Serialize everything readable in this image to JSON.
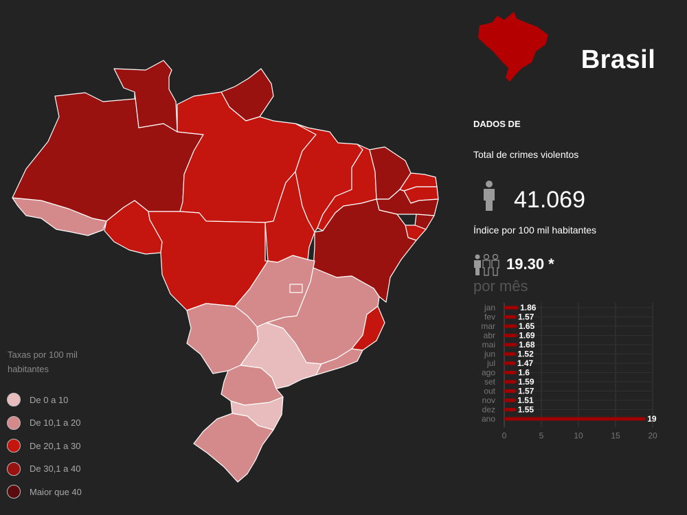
{
  "header": {
    "country_name": "Brasil",
    "section_heading": "DADOS DE",
    "total_label": "Total de crimes violentos",
    "total_value": "41.069",
    "index_label": "Índice por 100 mil habitantes",
    "index_value": "19.30 *",
    "month_title": "por mês"
  },
  "legend": {
    "title": "Taxas por 100 mil habitantes",
    "items": [
      {
        "label": "De 0 a 10",
        "color": "#e8bcbc"
      },
      {
        "label": "De 10,1 a 20",
        "color": "#d48a8a"
      },
      {
        "label": "De 20,1 a 30",
        "color": "#c4160f"
      },
      {
        "label": "De 30,1 a 40",
        "color": "#9a1210"
      },
      {
        "label": "Maior que 40",
        "color": "#5a0b0d"
      }
    ]
  },
  "map": {
    "states": [
      {
        "name": "AC",
        "color": "#d48a8a"
      },
      {
        "name": "AM",
        "color": "#9a1210"
      },
      {
        "name": "RR",
        "color": "#9a1210"
      },
      {
        "name": "AP",
        "color": "#9a1210"
      },
      {
        "name": "PA",
        "color": "#c4160f"
      },
      {
        "name": "RO",
        "color": "#c4160f"
      },
      {
        "name": "MT",
        "color": "#c4160f"
      },
      {
        "name": "TO",
        "color": "#c4160f"
      },
      {
        "name": "MA",
        "color": "#c4160f"
      },
      {
        "name": "PI",
        "color": "#c4160f"
      },
      {
        "name": "CE",
        "color": "#9a1210"
      },
      {
        "name": "RN",
        "color": "#c4160f"
      },
      {
        "name": "PB",
        "color": "#c4160f"
      },
      {
        "name": "PE",
        "color": "#9a1210"
      },
      {
        "name": "AL",
        "color": "#9a1210"
      },
      {
        "name": "SE",
        "color": "#c4160f"
      },
      {
        "name": "BA",
        "color": "#9a1210"
      },
      {
        "name": "GO",
        "color": "#d48a8a"
      },
      {
        "name": "DF",
        "color": "#d48a8a"
      },
      {
        "name": "MG",
        "color": "#d48a8a"
      },
      {
        "name": "ES",
        "color": "#c4160f"
      },
      {
        "name": "MS",
        "color": "#d48a8a"
      },
      {
        "name": "SP",
        "color": "#e8bcbc"
      },
      {
        "name": "RJ",
        "color": "#d48a8a"
      },
      {
        "name": "PR",
        "color": "#d48a8a"
      },
      {
        "name": "SC",
        "color": "#e8bcbc"
      },
      {
        "name": "RS",
        "color": "#d48a8a"
      }
    ]
  },
  "icons": {
    "country_shape": "brazil-silhouette-icon",
    "person": "person-icon",
    "people": "people-group-icon",
    "silhouette_color": "#b40000"
  },
  "chart_data": {
    "type": "bar",
    "orientation": "horizontal",
    "title": "por mês",
    "categories": [
      "jan",
      "fev",
      "mar",
      "abr",
      "mai",
      "jun",
      "jul",
      "ago",
      "set",
      "out",
      "nov",
      "dez",
      "ano"
    ],
    "values": [
      1.86,
      1.57,
      1.65,
      1.69,
      1.68,
      1.52,
      1.47,
      1.6,
      1.59,
      1.57,
      1.51,
      1.55,
      19
    ],
    "value_labels": [
      "1.86",
      "1.57",
      "1.65",
      "1.69",
      "1.68",
      "1.52",
      "1.47",
      "1.6",
      "1.59",
      "1.57",
      "1.51",
      "1.55",
      "19"
    ],
    "xlim": [
      0,
      20
    ],
    "xticks": [
      "0",
      "5",
      "10",
      "15",
      "20"
    ],
    "bar_color": "#a00000",
    "grid": true,
    "legend": "none"
  }
}
